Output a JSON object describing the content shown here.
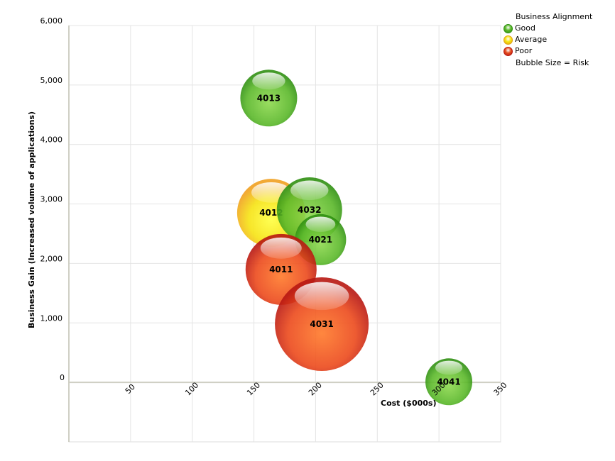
{
  "chart_data": {
    "type": "bubble",
    "xlabel": "Cost ($000s)",
    "ylabel": "Business Gain (Increased volume of applications)",
    "xlim": [
      0,
      350
    ],
    "ylim": [
      -1000,
      6000
    ],
    "x_ticks": [
      "50",
      "100",
      "150",
      "200",
      "250",
      "300",
      "350"
    ],
    "y_ticks": [
      "0",
      "1,000",
      "2,000",
      "3,000",
      "4,000",
      "5,000",
      "6,000"
    ],
    "grid": true,
    "legend_title": "Business Alignment",
    "legend_note": "Bubble Size = Risk",
    "legend_position": "top-right",
    "categories": [
      {
        "name": "Good",
        "color": "#4caf2a"
      },
      {
        "name": "Average",
        "color": "#f7e11c"
      },
      {
        "name": "Poor",
        "color": "#e0401b"
      }
    ],
    "points": [
      {
        "label": "4013",
        "x": 162,
        "y": 4780,
        "risk": 40,
        "category": "Good"
      },
      {
        "label": "4012",
        "x": 164,
        "y": 2850,
        "risk": 48,
        "category": "Average"
      },
      {
        "label": "4032",
        "x": 195,
        "y": 2900,
        "risk": 46,
        "category": "Good"
      },
      {
        "label": "4021",
        "x": 204,
        "y": 2400,
        "risk": 36,
        "category": "Good"
      },
      {
        "label": "4011",
        "x": 172,
        "y": 1900,
        "risk": 50,
        "category": "Poor"
      },
      {
        "label": "4031",
        "x": 205,
        "y": 980,
        "risk": 66,
        "category": "Poor"
      },
      {
        "label": "4041",
        "x": 308,
        "y": 10,
        "risk": 33,
        "category": "Good"
      }
    ]
  }
}
